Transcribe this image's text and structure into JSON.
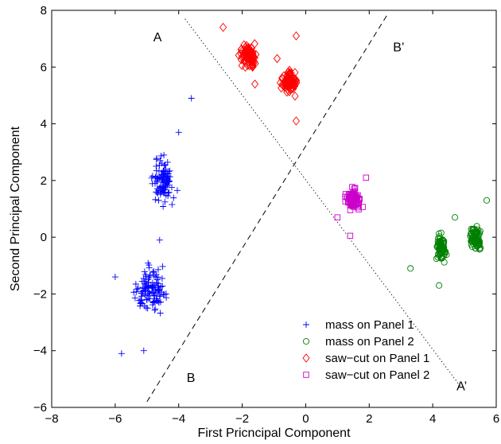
{
  "chart_data": {
    "type": "scatter",
    "xlabel": "First Pricncipal Component",
    "ylabel": "Second Principal Component",
    "xlim": [
      -8,
      6
    ],
    "ylim": [
      -6,
      8
    ],
    "xticks": [
      "−8",
      "−6",
      "−4",
      "−2",
      "0",
      "2",
      "4",
      "6"
    ],
    "yticks": [
      "−6",
      "−4",
      "−2",
      "0",
      "2",
      "4",
      "6",
      "8"
    ],
    "grid": false,
    "legend_position": "bottom-center",
    "series": [
      {
        "name": "mass on Panel 1",
        "marker": "plus",
        "color": "#0000ff",
        "clusters": [
          {
            "center": [
              -4.5,
              2.0
            ],
            "spread": [
              0.3,
              0.65
            ],
            "count": 100
          },
          {
            "center": [
              -4.9,
              -1.9
            ],
            "spread": [
              0.45,
              0.65
            ],
            "count": 120
          }
        ],
        "extra_points": [
          [
            -3.6,
            4.9
          ],
          [
            -4.0,
            3.7
          ],
          [
            -6.0,
            -1.4
          ],
          [
            -5.8,
            -4.1
          ],
          [
            -5.1,
            -4.0
          ],
          [
            -4.6,
            -0.1
          ]
        ]
      },
      {
        "name": "mass on Panel 2",
        "marker": "circle",
        "color": "#008000",
        "clusters": [
          {
            "center": [
              4.25,
              -0.35
            ],
            "spread": [
              0.13,
              0.38
            ],
            "count": 80
          },
          {
            "center": [
              5.35,
              0.0
            ],
            "spread": [
              0.14,
              0.33
            ],
            "count": 90
          }
        ],
        "extra_points": [
          [
            3.3,
            -1.1
          ],
          [
            4.2,
            -1.7
          ],
          [
            4.7,
            0.7
          ],
          [
            5.7,
            1.3
          ]
        ]
      },
      {
        "name": "saw−cut on Panel 1",
        "marker": "diamond",
        "color": "#ff0000",
        "clusters": [
          {
            "center": [
              -1.8,
              6.4
            ],
            "spread": [
              0.25,
              0.3
            ],
            "count": 90
          },
          {
            "center": [
              -0.5,
              5.5
            ],
            "spread": [
              0.2,
              0.3
            ],
            "count": 90
          }
        ],
        "extra_points": [
          [
            -0.3,
            7.1
          ],
          [
            -2.6,
            7.4
          ],
          [
            -0.3,
            4.1
          ],
          [
            -1.6,
            5.4
          ],
          [
            -0.9,
            6.3
          ]
        ]
      },
      {
        "name": "saw−cut on Panel 2",
        "marker": "square",
        "color": "#cc00cc",
        "clusters": [
          {
            "center": [
              1.5,
              1.3
            ],
            "spread": [
              0.17,
              0.3
            ],
            "count": 110
          }
        ],
        "extra_points": [
          [
            1.4,
            0.05
          ],
          [
            1.9,
            2.1
          ],
          [
            1.0,
            0.7
          ]
        ]
      }
    ],
    "reference_lines": [
      {
        "name": "A-A'",
        "style": "dotted",
        "from": [
          -3.8,
          7.7
        ],
        "to": [
          4.9,
          -5.3
        ]
      },
      {
        "name": "B-B'",
        "style": "dashed",
        "from": [
          -5.0,
          -5.8
        ],
        "to": [
          2.6,
          7.9
        ]
      }
    ],
    "annotations": [
      {
        "text": "A",
        "at": [
          -4.8,
          6.9
        ]
      },
      {
        "text": "B’",
        "at": [
          2.75,
          6.55
        ]
      },
      {
        "text": "B",
        "at": [
          -3.75,
          -5.1
        ]
      },
      {
        "text": "A’",
        "at": [
          4.75,
          -5.4
        ]
      }
    ]
  }
}
